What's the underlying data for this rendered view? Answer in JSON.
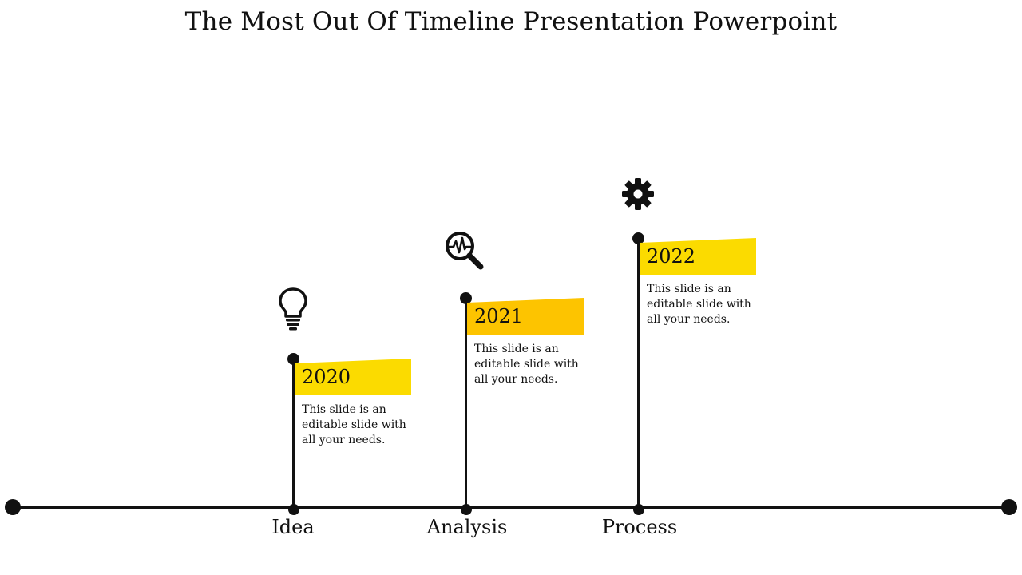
{
  "title": "The Most Out Of Timeline Presentation Powerpoint",
  "accent_colors": {
    "flag_yellow": "#fbdb00",
    "flag_amber": "#fdc400",
    "line": "#111111"
  },
  "milestones": [
    {
      "year": "2020",
      "stage": "Idea",
      "description": "This slide is an editable slide with all your needs.",
      "icon": "lightbulb-icon",
      "flag_color": "#fbdb00"
    },
    {
      "year": "2021",
      "stage": "Analysis",
      "description": "This slide is an editable slide with all your needs.",
      "icon": "magnifier-pulse-icon",
      "flag_color": "#fdc400"
    },
    {
      "year": "2022",
      "stage": "Process",
      "description": "This slide is an editable slide with all your needs.",
      "icon": "gear-icon",
      "flag_color": "#fbdb00"
    }
  ]
}
